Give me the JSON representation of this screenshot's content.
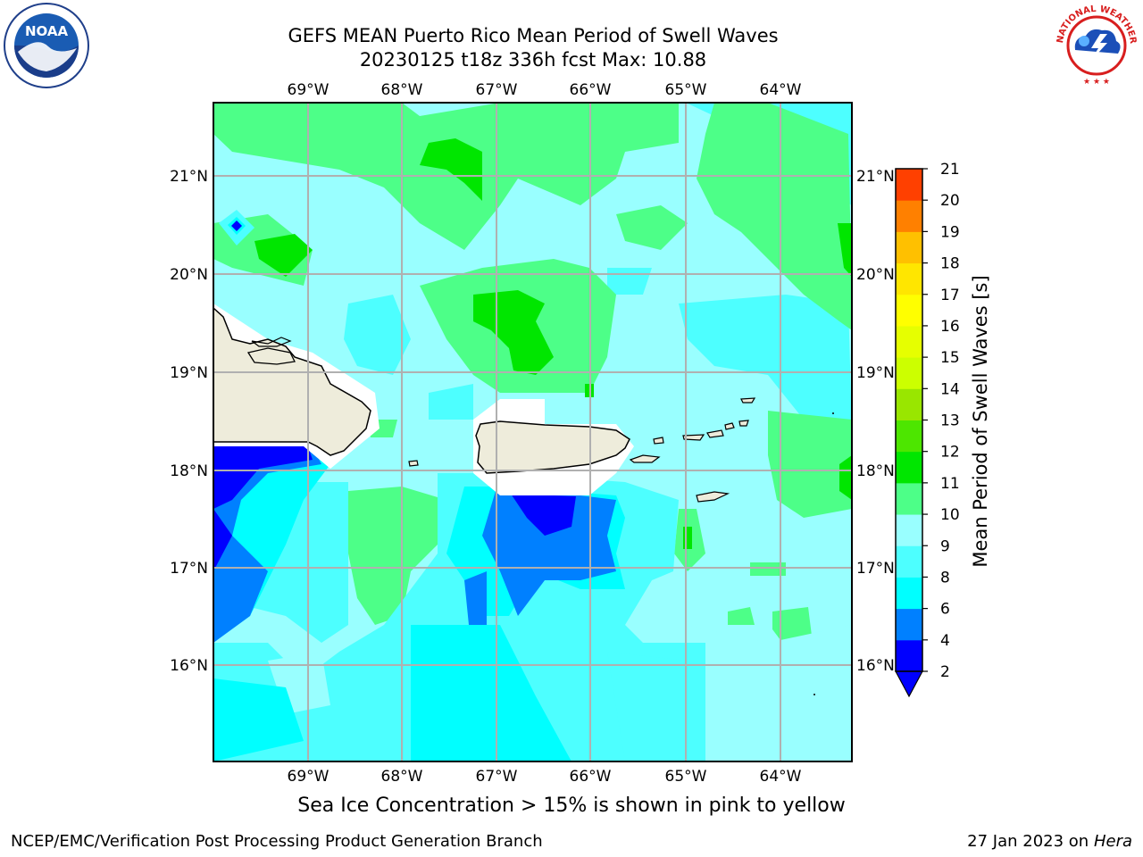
{
  "title": {
    "line1": "GEFS MEAN Puerto Rico Mean Period of Swell Waves",
    "line2": "20230125 t18z 336h fcst   Max: 10.88"
  },
  "logos": {
    "left": {
      "icon": "noaa-logo",
      "text": "NOAA"
    },
    "right": {
      "icon": "nws-logo",
      "text": "NATIONAL WEATHER SERVICE"
    }
  },
  "map": {
    "lon_labels": [
      "69°W",
      "68°W",
      "67°W",
      "66°W",
      "65°W",
      "64°W"
    ],
    "lat_labels": [
      "21°N",
      "20°N",
      "19°N",
      "18°N",
      "17°N",
      "16°N"
    ],
    "land_color": "#eeecdb",
    "grid_color": "#b0b0b0"
  },
  "colorbar": {
    "title": "Mean Period of Swell Waves [s]",
    "levels": [
      "2",
      "4",
      "6",
      "8",
      "9",
      "10",
      "11",
      "12",
      "13",
      "14",
      "15",
      "16",
      "17",
      "18",
      "19",
      "20",
      "21"
    ],
    "colors": [
      "#0000ff",
      "#0080ff",
      "#00ffff",
      "#4dffff",
      "#99ffff",
      "#4dff88",
      "#00e600",
      "#4de600",
      "#99e600",
      "#ccff00",
      "#e6ff00",
      "#ffff00",
      "#ffe600",
      "#ffc000",
      "#ff8000",
      "#ff4000",
      "#ff0000"
    ],
    "under_color": "#0000ff"
  },
  "subtitle": "Sea Ice Concentration > 15% is shown in pink to yellow",
  "footer": {
    "left": "NCEP/EMC/Verification Post Processing Product Generation Branch",
    "right_date": "27 Jan 2023 on",
    "right_host": "Hera"
  }
}
